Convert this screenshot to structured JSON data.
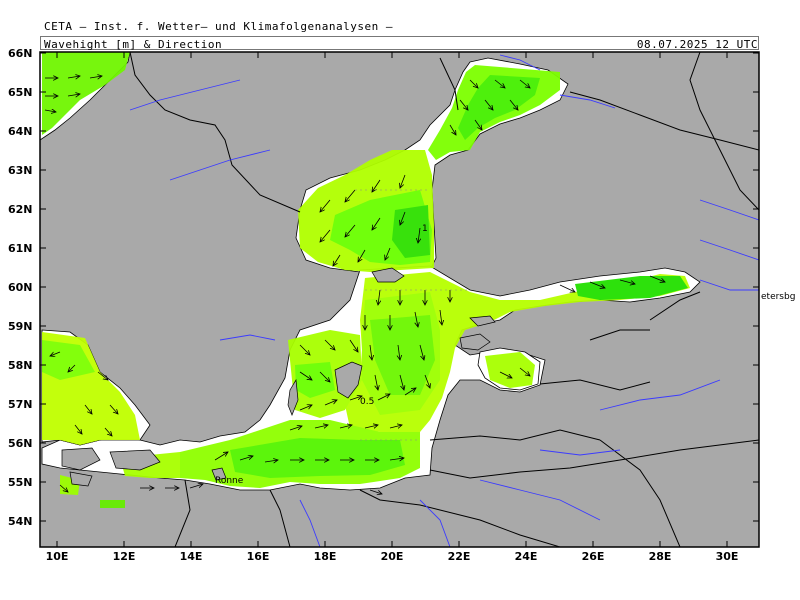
{
  "header": {
    "title": "CETA — Inst. f. Wetter— und Klimafolgenanalysen —",
    "subtitle": "Wavehight [m] & Direction",
    "datetime": "08.07.2025 12 UTC"
  },
  "axes": {
    "lat_labels": [
      "66N",
      "65N",
      "64N",
      "63N",
      "62N",
      "61N",
      "60N",
      "59N",
      "58N",
      "57N",
      "56N",
      "55N",
      "54N"
    ],
    "lon_labels": [
      "10E",
      "12E",
      "14E",
      "16E",
      "18E",
      "20E",
      "22E",
      "24E",
      "26E",
      "28E",
      "30E"
    ]
  },
  "annotations": {
    "contour_1": "1",
    "contour_05": "0.5",
    "city_ronne": "Ronne",
    "city_petersburg": "etersbg"
  },
  "colors": {
    "land": "#a9a9a9",
    "sea": "#ffffff",
    "wave_low": "#b7ff00",
    "wave_high": "#22e000",
    "rivers": "#3b3bff",
    "borders": "#000000"
  },
  "map_data": {
    "type": "wave-height-field",
    "variable": "significant wave height",
    "unit": "m",
    "contours": [
      0.5,
      1
    ],
    "lat_range": [
      53.3,
      66
    ],
    "lon_range": [
      9.5,
      31
    ]
  }
}
